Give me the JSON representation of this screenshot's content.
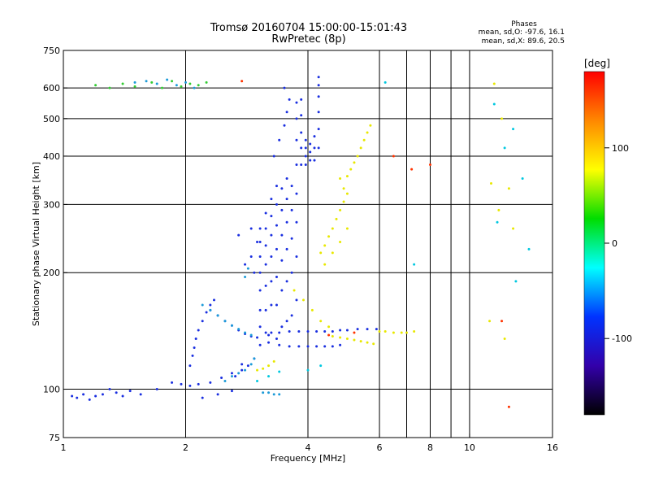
{
  "chart_data": {
    "type": "scatter",
    "title": "Tromsø 20160704 15:00:00-15:01:43",
    "subtitle": "RwPretec (8p)",
    "xlabel": "Frequency [MHz]",
    "ylabel": "Stationary phase Virtual Height [km]",
    "x_scale": "log",
    "y_scale": "log",
    "xlim": [
      1,
      16
    ],
    "ylim": [
      75,
      750
    ],
    "x_ticks": [
      1,
      2,
      4,
      6,
      8,
      10,
      16
    ],
    "x_gridlines": [
      2,
      4,
      6,
      7,
      8,
      9,
      10
    ],
    "y_ticks": [
      75,
      100,
      200,
      300,
      400,
      500,
      600,
      750
    ],
    "y_gridlines": [
      100,
      200,
      300,
      400,
      500,
      600
    ],
    "grid": true,
    "stats": {
      "header": "Phases",
      "line_o": "mean, sd,O: -97.6, 16.1",
      "line_x": "mean, sd,X:  89.6, 20.5"
    },
    "colorbar": {
      "label": "[deg]",
      "range": [
        -180,
        180
      ],
      "ticks": [
        100,
        0,
        -100
      ],
      "colors": [
        "#ff0000",
        "#ff8800",
        "#ffff00",
        "#00dd00",
        "#00ffff",
        "#0033ff",
        "#3300aa",
        "#000000"
      ]
    },
    "series": [
      {
        "points": [
          [
            1.05,
            96
          ],
          [
            1.08,
            95
          ],
          [
            1.12,
            97
          ],
          [
            1.16,
            94
          ],
          [
            1.2,
            96
          ],
          [
            1.25,
            97
          ],
          [
            1.3,
            100
          ],
          [
            1.35,
            98
          ],
          [
            1.4,
            96
          ],
          [
            1.46,
            99
          ],
          [
            1.55,
            97
          ],
          [
            1.7,
            100
          ],
          [
            1.85,
            104
          ],
          [
            1.95,
            103
          ],
          [
            2.05,
            102
          ],
          [
            2.15,
            103
          ],
          [
            2.3,
            104
          ],
          [
            2.45,
            107
          ],
          [
            2.6,
            110
          ],
          [
            2.75,
            116
          ],
          [
            2.05,
            115
          ],
          [
            2.08,
            122
          ],
          [
            2.1,
            128
          ],
          [
            2.12,
            135
          ],
          [
            2.15,
            142
          ],
          [
            2.2,
            150
          ],
          [
            2.25,
            158
          ],
          [
            2.3,
            165
          ],
          [
            2.35,
            170
          ],
          [
            2.3,
            160
          ],
          [
            2.4,
            155
          ],
          [
            2.5,
            150
          ],
          [
            2.6,
            146
          ],
          [
            2.7,
            142
          ],
          [
            2.8,
            139
          ],
          [
            2.9,
            137
          ],
          [
            3.0,
            136
          ],
          [
            3.2,
            138
          ],
          [
            3.4,
            140
          ],
          [
            3.6,
            141
          ],
          [
            3.8,
            141
          ],
          [
            4.0,
            141
          ],
          [
            4.2,
            141
          ],
          [
            4.4,
            141
          ],
          [
            4.6,
            141
          ],
          [
            4.8,
            142
          ],
          [
            5.0,
            142
          ],
          [
            5.3,
            143
          ],
          [
            5.6,
            143
          ],
          [
            5.9,
            143
          ],
          [
            3.2,
            132
          ],
          [
            3.4,
            130
          ],
          [
            3.6,
            129
          ],
          [
            3.8,
            129
          ],
          [
            4.0,
            129
          ],
          [
            4.2,
            129
          ],
          [
            4.4,
            129
          ],
          [
            4.6,
            129
          ],
          [
            4.8,
            130
          ],
          [
            3.05,
            130
          ],
          [
            3.05,
            145
          ],
          [
            3.05,
            160
          ],
          [
            3.05,
            180
          ],
          [
            3.05,
            200
          ],
          [
            3.05,
            220
          ],
          [
            3.05,
            240
          ],
          [
            3.05,
            260
          ],
          [
            3.15,
            140
          ],
          [
            3.15,
            160
          ],
          [
            3.15,
            185
          ],
          [
            3.15,
            210
          ],
          [
            3.15,
            235
          ],
          [
            3.15,
            260
          ],
          [
            3.15,
            285
          ],
          [
            3.25,
            140
          ],
          [
            3.25,
            165
          ],
          [
            3.25,
            190
          ],
          [
            3.25,
            220
          ],
          [
            3.25,
            250
          ],
          [
            3.25,
            280
          ],
          [
            3.25,
            310
          ],
          [
            3.35,
            135
          ],
          [
            3.35,
            165
          ],
          [
            3.35,
            195
          ],
          [
            3.35,
            230
          ],
          [
            3.35,
            265
          ],
          [
            3.35,
            300
          ],
          [
            3.35,
            335
          ],
          [
            3.45,
            145
          ],
          [
            3.45,
            180
          ],
          [
            3.45,
            215
          ],
          [
            3.45,
            250
          ],
          [
            3.45,
            290
          ],
          [
            3.45,
            330
          ],
          [
            3.55,
            150
          ],
          [
            3.55,
            190
          ],
          [
            3.55,
            230
          ],
          [
            3.55,
            270
          ],
          [
            3.55,
            310
          ],
          [
            3.55,
            350
          ],
          [
            3.65,
            155
          ],
          [
            3.65,
            200
          ],
          [
            3.65,
            245
          ],
          [
            3.65,
            290
          ],
          [
            3.65,
            335
          ],
          [
            3.75,
            170
          ],
          [
            3.75,
            220
          ],
          [
            3.75,
            270
          ],
          [
            3.75,
            320
          ],
          [
            3.75,
            380
          ],
          [
            3.75,
            440
          ],
          [
            3.75,
            500
          ],
          [
            3.75,
            550
          ],
          [
            3.85,
            380
          ],
          [
            3.85,
            420
          ],
          [
            3.85,
            460
          ],
          [
            3.85,
            510
          ],
          [
            3.85,
            560
          ],
          [
            3.95,
            380
          ],
          [
            3.95,
            400
          ],
          [
            3.95,
            420
          ],
          [
            3.95,
            440
          ],
          [
            4.05,
            390
          ],
          [
            4.05,
            410
          ],
          [
            4.05,
            430
          ],
          [
            4.15,
            390
          ],
          [
            4.15,
            420
          ],
          [
            4.15,
            450
          ],
          [
            4.25,
            420
          ],
          [
            4.25,
            470
          ],
          [
            4.25,
            520
          ],
          [
            4.25,
            570
          ],
          [
            4.25,
            610
          ],
          [
            4.25,
            640
          ],
          [
            3.3,
            400
          ],
          [
            3.4,
            440
          ],
          [
            3.5,
            480
          ],
          [
            3.55,
            520
          ],
          [
            3.6,
            560
          ],
          [
            3.5,
            600
          ],
          [
            2.8,
            210
          ],
          [
            2.9,
            220
          ],
          [
            2.7,
            250
          ],
          [
            2.9,
            260
          ],
          [
            3.0,
            240
          ],
          [
            2.95,
            200
          ],
          [
            2.65,
            108
          ],
          [
            2.75,
            112
          ],
          [
            2.85,
            115
          ],
          [
            2.95,
            120
          ],
          [
            2.2,
            95
          ],
          [
            2.4,
            97
          ],
          [
            2.6,
            99
          ]
        ]
      },
      {
        "points": [
          [
            2.2,
            165
          ],
          [
            2.3,
            160
          ],
          [
            2.4,
            155
          ],
          [
            2.5,
            150
          ],
          [
            2.6,
            146
          ],
          [
            2.7,
            143
          ],
          [
            2.8,
            140
          ],
          [
            2.9,
            138
          ],
          [
            2.5,
            105
          ],
          [
            2.6,
            108
          ],
          [
            2.7,
            110
          ],
          [
            2.8,
            112
          ],
          [
            2.9,
            116
          ],
          [
            2.95,
            120
          ],
          [
            3.1,
            98
          ],
          [
            3.2,
            98
          ],
          [
            3.3,
            97
          ],
          [
            3.4,
            97
          ],
          [
            2.8,
            195
          ],
          [
            2.85,
            205
          ],
          [
            1.5,
            620
          ],
          [
            1.6,
            625
          ],
          [
            1.7,
            615
          ],
          [
            1.8,
            630
          ],
          [
            1.9,
            610
          ],
          [
            2.0,
            620
          ],
          [
            2.1,
            600
          ]
        ]
      },
      {
        "points": [
          [
            4.3,
            225
          ],
          [
            4.4,
            235
          ],
          [
            4.5,
            248
          ],
          [
            4.6,
            260
          ],
          [
            4.7,
            275
          ],
          [
            4.8,
            290
          ],
          [
            4.9,
            305
          ],
          [
            5.0,
            320
          ],
          [
            5.0,
            355
          ],
          [
            5.1,
            370
          ],
          [
            5.2,
            385
          ],
          [
            5.3,
            400
          ],
          [
            5.4,
            420
          ],
          [
            5.5,
            440
          ],
          [
            5.6,
            460
          ],
          [
            5.7,
            480
          ],
          [
            4.4,
            210
          ],
          [
            4.6,
            225
          ],
          [
            4.8,
            240
          ],
          [
            5.0,
            260
          ],
          [
            4.9,
            330
          ],
          [
            4.8,
            350
          ],
          [
            3.7,
            180
          ],
          [
            3.9,
            170
          ],
          [
            4.1,
            160
          ],
          [
            4.3,
            150
          ],
          [
            4.5,
            145
          ],
          [
            4.6,
            137
          ],
          [
            4.8,
            136
          ],
          [
            5.0,
            135
          ],
          [
            5.2,
            134
          ],
          [
            5.4,
            133
          ],
          [
            5.6,
            132
          ],
          [
            5.8,
            131
          ],
          [
            6.0,
            141
          ],
          [
            6.2,
            141
          ],
          [
            6.5,
            140
          ],
          [
            6.8,
            140
          ],
          [
            7.0,
            140
          ],
          [
            7.3,
            141
          ],
          [
            3.0,
            112
          ],
          [
            3.1,
            113
          ],
          [
            3.2,
            115
          ],
          [
            3.3,
            118
          ],
          [
            11.5,
            615
          ],
          [
            12.0,
            500
          ],
          [
            11.3,
            340
          ],
          [
            12.5,
            330
          ],
          [
            11.8,
            290
          ],
          [
            12.8,
            260
          ],
          [
            11.2,
            150
          ],
          [
            12.2,
            135
          ]
        ]
      },
      {
        "points": [
          [
            1.2,
            610
          ],
          [
            1.3,
            600
          ],
          [
            1.4,
            615
          ],
          [
            1.5,
            605
          ],
          [
            1.65,
            620
          ],
          [
            1.75,
            600
          ],
          [
            1.85,
            625
          ],
          [
            1.95,
            605
          ],
          [
            2.05,
            615
          ],
          [
            2.15,
            610
          ],
          [
            2.25,
            620
          ]
        ]
      },
      {
        "points": [
          [
            2.75,
            625
          ],
          [
            12.0,
            150
          ],
          [
            12.5,
            90
          ],
          [
            6.5,
            400
          ],
          [
            7.2,
            370
          ],
          [
            8.0,
            380
          ],
          [
            4.5,
            138
          ],
          [
            5.2,
            140
          ]
        ]
      },
      {
        "points": [
          [
            3.0,
            105
          ],
          [
            3.2,
            108
          ],
          [
            3.4,
            111
          ],
          [
            4.0,
            112
          ],
          [
            4.3,
            115
          ],
          [
            11.5,
            545
          ],
          [
            12.8,
            470
          ],
          [
            13.5,
            350
          ],
          [
            14.0,
            230
          ],
          [
            12.2,
            420
          ],
          [
            11.7,
            270
          ],
          [
            13.0,
            190
          ],
          [
            6.2,
            620
          ],
          [
            7.3,
            210
          ]
        ]
      }
    ]
  }
}
